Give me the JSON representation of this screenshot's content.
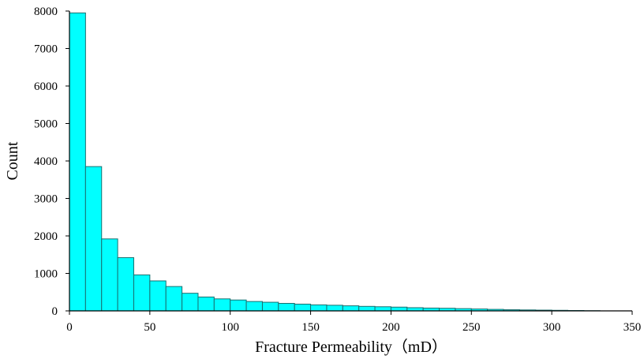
{
  "chart_data": {
    "type": "bar",
    "title": "",
    "xlabel": "Fracture Permeability（mD）",
    "ylabel": "Count",
    "bar_color": "#00ffff",
    "bar_edge_color": "#1a6f6f",
    "bin_width": 10,
    "xlim": [
      0,
      350
    ],
    "ylim": [
      0,
      8000
    ],
    "x_ticks": [
      0,
      50,
      100,
      150,
      200,
      250,
      300,
      350
    ],
    "y_ticks": [
      0,
      1000,
      2000,
      3000,
      4000,
      5000,
      6000,
      7000,
      8000
    ],
    "bins_start": [
      0,
      10,
      20,
      30,
      40,
      50,
      60,
      70,
      80,
      90,
      100,
      110,
      120,
      130,
      140,
      150,
      160,
      170,
      180,
      190,
      200,
      210,
      220,
      230,
      240,
      250,
      260,
      270,
      280,
      290,
      300,
      310,
      320
    ],
    "values": [
      7950,
      3850,
      1920,
      1420,
      960,
      800,
      650,
      470,
      370,
      320,
      290,
      250,
      230,
      200,
      180,
      160,
      150,
      135,
      120,
      110,
      100,
      85,
      75,
      70,
      60,
      50,
      40,
      30,
      25,
      20,
      15,
      10,
      5
    ],
    "grid": false,
    "legend": "none"
  }
}
